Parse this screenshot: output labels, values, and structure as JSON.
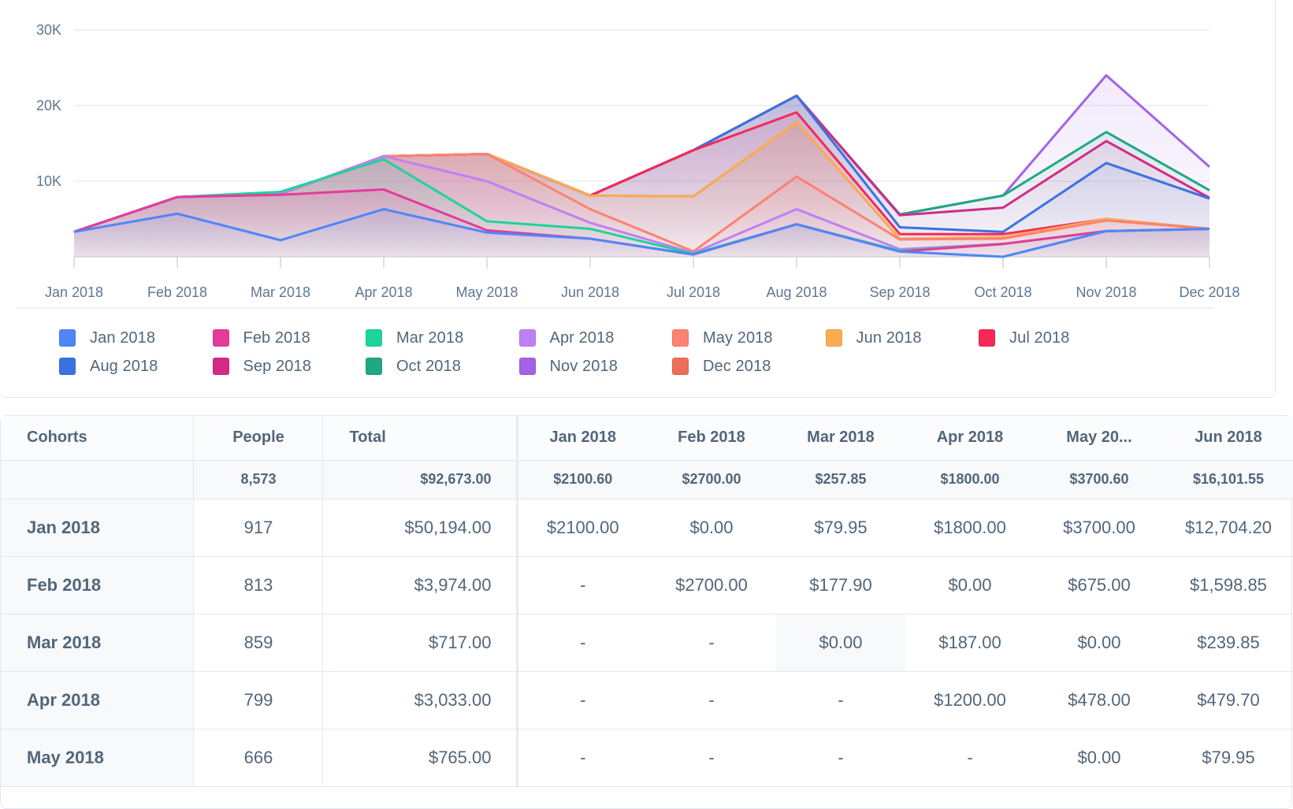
{
  "chart_data": {
    "type": "area",
    "title": "",
    "xlabel": "",
    "ylabel": "",
    "ylim": [
      0,
      30000
    ],
    "yticks": [
      {
        "value": 10000,
        "label": "10K"
      },
      {
        "value": 20000,
        "label": "20K"
      },
      {
        "value": 30000,
        "label": "30K"
      }
    ],
    "grid": true,
    "legend_position": "bottom",
    "categories": [
      "Jan 2018",
      "Feb 2018",
      "Mar 2018",
      "Apr 2018",
      "May 2018",
      "Jun 2018",
      "Jul 2018",
      "Aug 2018",
      "Sep 2018",
      "Oct 2018",
      "Nov 2018",
      "Dec 2018"
    ],
    "series": [
      {
        "name": "Dec 2018",
        "color": "#EE6E5A",
        "values": [
          3300,
          7900,
          8300,
          13300,
          13600,
          8100,
          8000,
          17800,
          2400,
          2500,
          4900,
          3700
        ]
      },
      {
        "name": "Nov 2018",
        "color": "#A463E6",
        "values": [
          3300,
          7900,
          8300,
          13300,
          13600,
          8100,
          14100,
          21300,
          5600,
          8100,
          24000,
          11900
        ]
      },
      {
        "name": "Oct 2018",
        "color": "#1FA882",
        "values": [
          3300,
          7900,
          8300,
          13300,
          13600,
          8100,
          14100,
          21300,
          5600,
          8100,
          16500,
          8800
        ]
      },
      {
        "name": "Sep 2018",
        "color": "#D42A86",
        "values": [
          3300,
          7900,
          8300,
          13300,
          13600,
          8100,
          14100,
          21300,
          5500,
          6500,
          15300,
          7800
        ]
      },
      {
        "name": "Aug 2018",
        "color": "#3A72E0",
        "values": [
          3300,
          7900,
          8300,
          13300,
          13600,
          8100,
          14100,
          21300,
          3900,
          3300,
          12400,
          7700
        ]
      },
      {
        "name": "Jul 2018",
        "color": "#F72857",
        "values": [
          3300,
          7900,
          8300,
          13300,
          13600,
          8100,
          14100,
          19100,
          3000,
          3000,
          5000,
          3700
        ]
      },
      {
        "name": "Jun 2018",
        "color": "#F9AD50",
        "values": [
          3300,
          7900,
          8300,
          13300,
          13600,
          8100,
          8000,
          17800,
          2400,
          2600,
          5000,
          3700
        ]
      },
      {
        "name": "May 2018",
        "color": "#FC8272",
        "values": [
          3300,
          7900,
          8300,
          13300,
          13600,
          6300,
          700,
          10600,
          2300,
          2400,
          4800,
          3700
        ]
      },
      {
        "name": "Apr 2018",
        "color": "#BD81F5",
        "values": [
          3300,
          7900,
          8300,
          13300,
          10000,
          4500,
          500,
          6300,
          1000,
          1700,
          3400,
          3700
        ]
      },
      {
        "name": "Mar 2018",
        "color": "#1ED49A",
        "values": [
          3300,
          7900,
          8600,
          12900,
          4700,
          3700,
          400,
          4300,
          800,
          1700,
          3400,
          3700
        ]
      },
      {
        "name": "Feb 2018",
        "color": "#E63A9D",
        "values": [
          3300,
          7900,
          8200,
          8900,
          3500,
          2400,
          300,
          4300,
          700,
          1700,
          3400,
          3700
        ]
      },
      {
        "name": "Jan 2018",
        "color": "#4F86F7",
        "values": [
          3300,
          5700,
          2200,
          6300,
          3200,
          2400,
          300,
          4300,
          700,
          0,
          3400,
          3700
        ]
      }
    ]
  },
  "legend": {
    "rows": [
      [
        {
          "label": "Jan 2018",
          "color": "#4F86F7"
        },
        {
          "label": "Feb 2018",
          "color": "#E63A9D"
        },
        {
          "label": "Mar 2018",
          "color": "#1ED49A"
        },
        {
          "label": "Apr 2018",
          "color": "#BD81F5"
        },
        {
          "label": "May 2018",
          "color": "#FC8272"
        },
        {
          "label": "Jun 2018",
          "color": "#F9AD50"
        },
        {
          "label": "Jul 2018",
          "color": "#F72857"
        }
      ],
      [
        {
          "label": "Aug 2018",
          "color": "#3A72E0"
        },
        {
          "label": "Sep 2018",
          "color": "#D42A86"
        },
        {
          "label": "Oct 2018",
          "color": "#1FA882"
        },
        {
          "label": "Nov 2018",
          "color": "#A463E6"
        },
        {
          "label": "Dec 2018",
          "color": "#EE6E5A"
        }
      ]
    ]
  },
  "table": {
    "headers": {
      "cohorts": "Cohorts",
      "people": "People",
      "total": "Total",
      "months": [
        "Jan 2018",
        "Feb 2018",
        "Mar 2018",
        "Apr 2018",
        "May 20...",
        "Jun 2018"
      ]
    },
    "summary": {
      "cohort": "",
      "people": "8,573",
      "total": "$92,673.00",
      "months": [
        "$2100.60",
        "$2700.00",
        "$257.85",
        "$1800.00",
        "$3700.60",
        "$16,101.55"
      ]
    },
    "rows": [
      {
        "cohort": "Jan 2018",
        "people": "917",
        "total": "$50,194.00",
        "months": [
          "$2100.00",
          "$0.00",
          "$79.95",
          "$1800.00",
          "$3700.00",
          "$12,704.20"
        ]
      },
      {
        "cohort": "Feb 2018",
        "people": "813",
        "total": "$3,974.00",
        "months": [
          "-",
          "$2700.00",
          "$177.90",
          "$0.00",
          "$675.00",
          "$1,598.85"
        ]
      },
      {
        "cohort": "Mar 2018",
        "people": "859",
        "total": "$717.00",
        "months": [
          "-",
          "-",
          "$0.00",
          "$187.00",
          "$0.00",
          "$239.85"
        ]
      },
      {
        "cohort": "Apr 2018",
        "people": "799",
        "total": "$3,033.00",
        "months": [
          "-",
          "-",
          "-",
          "$1200.00",
          "$478.00",
          "$479.70"
        ]
      },
      {
        "cohort": "May 2018",
        "people": "666",
        "total": "$765.00",
        "months": [
          "-",
          "-",
          "-",
          "-",
          "$0.00",
          "$79.95"
        ]
      }
    ]
  }
}
